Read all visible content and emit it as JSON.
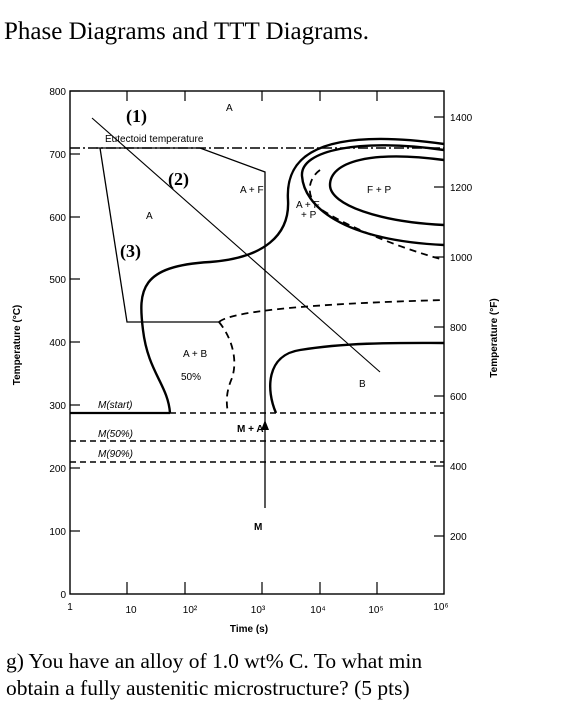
{
  "heading": "Phase Diagrams and TTT Diagrams.",
  "question": {
    "line1": "g)  You have an alloy of 1.0 wt% C.  To what min",
    "line2": "obtain a fully austenitic microstructure? (5 pts)"
  },
  "diagram": {
    "left_axis": {
      "label": "Temperature (°C)",
      "ticks": [
        "800",
        "700",
        "600",
        "500",
        "400",
        "300",
        "200",
        "100",
        "0"
      ]
    },
    "right_axis": {
      "label": "Temperature (°F)",
      "ticks": [
        "1400",
        "1200",
        "1000",
        "800",
        "600",
        "400",
        "200"
      ]
    },
    "x_axis": {
      "label": "Time (s)",
      "ticks": [
        "1",
        "10",
        "10²",
        "10³",
        "10⁴",
        "10⁵",
        "10⁶"
      ]
    },
    "labels": {
      "eutectoid": "Eutectoid temperature",
      "path1": "(1)",
      "path2": "(2)",
      "path3": "(3)",
      "a_top": "A",
      "a_left": "A",
      "a_plus_f": "A + F",
      "a_plus_f_p_line1": "A + F",
      "a_plus_f_p_line2": "+ P",
      "f_plus_p": "F + P",
      "a_plus_b": "A + B",
      "fifty_pct": "50%",
      "b": "B",
      "m_start": "M(start)",
      "m_50": "M(50%)",
      "m_90": "M(90%)",
      "m_plus_a": "M + A",
      "m": "M"
    }
  }
}
